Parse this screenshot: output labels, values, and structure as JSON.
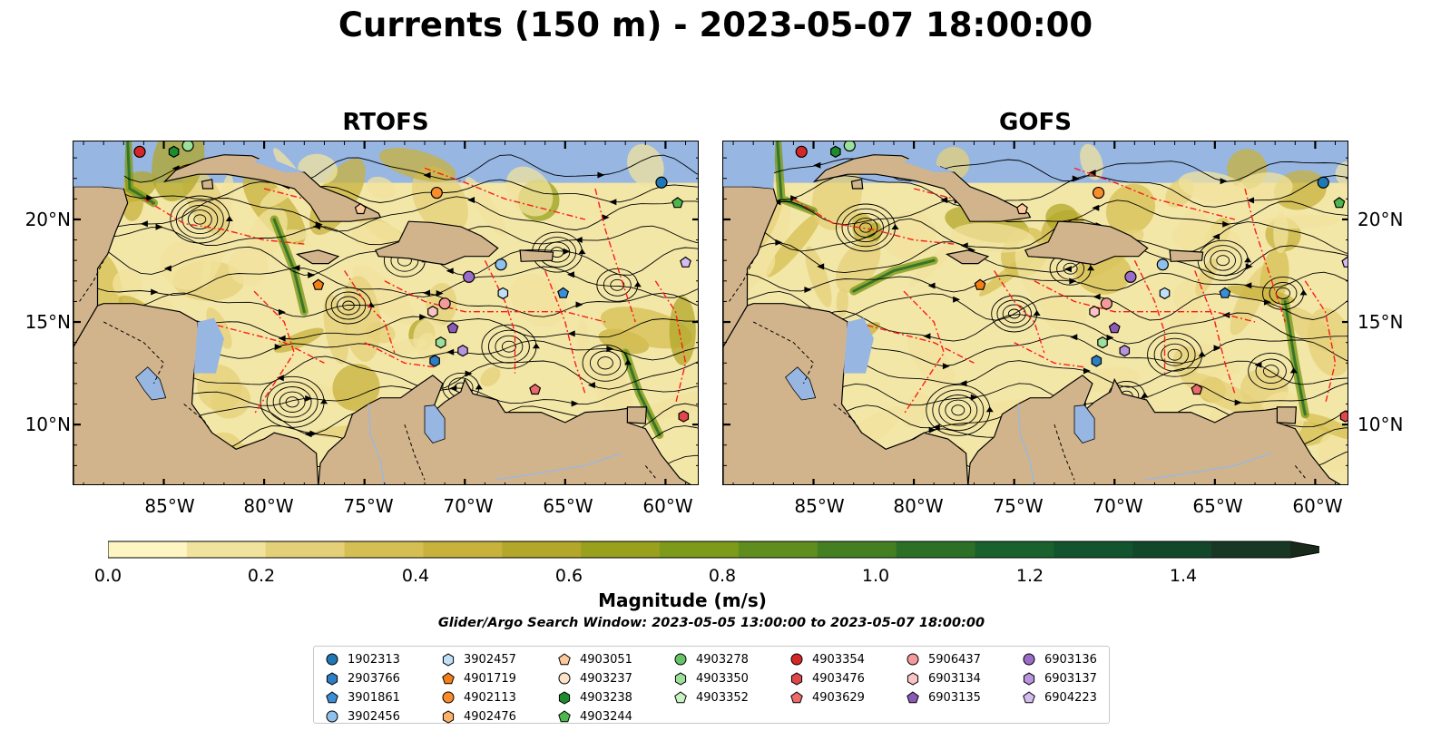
{
  "title": "Currents (150 m) - 2023-05-07 18:00:00",
  "panels": [
    {
      "title": "RTOFS"
    },
    {
      "title": "GOFS"
    }
  ],
  "lon_ticks": [
    "85°W",
    "80°W",
    "75°W",
    "70°W",
    "65°W",
    "60°W"
  ],
  "lat_ticks": [
    "20°N",
    "15°N",
    "10°N"
  ],
  "colorbar": {
    "label": "Magnitude (m/s)",
    "ticks": [
      "0.0",
      "0.2",
      "0.4",
      "0.6",
      "0.8",
      "1.0",
      "1.2",
      "1.4"
    ],
    "min": 0.0,
    "max": 1.5,
    "step": 0.1,
    "extend": "max",
    "colors": [
      "#fdf6c3",
      "#f1e39e",
      "#e5d07a",
      "#d6bf52",
      "#c8b23c",
      "#b2a728",
      "#98a01c",
      "#7d9a1a",
      "#5f8e1f",
      "#447f22",
      "#2c7027",
      "#19622d",
      "#11542d",
      "#13472a",
      "#183724",
      "#1a2a1a"
    ]
  },
  "subtitle": "Glider/Argo Search Window: 2023-05-05 13:00:00 to 2023-05-07 18:00:00",
  "colors": {
    "ocean": "#f3e7a8",
    "land": "#d2b48c",
    "lake": "#97b6e2",
    "eez": "#ff1a1a",
    "stream": "#000000"
  },
  "legend": [
    {
      "id": "1902313",
      "marker": "circle",
      "color": "#1f77b4"
    },
    {
      "id": "2903766",
      "marker": "hexagon",
      "color": "#2c7fc4"
    },
    {
      "id": "3901861",
      "marker": "pentagon",
      "color": "#3b8fd6"
    },
    {
      "id": "3902456",
      "marker": "circle",
      "color": "#8fc1ec"
    },
    {
      "id": "3902457",
      "marker": "hexagon",
      "color": "#bfe0f7"
    },
    {
      "id": "4901719",
      "marker": "pentagon",
      "color": "#f57f17"
    },
    {
      "id": "4902113",
      "marker": "circle",
      "color": "#fb8c2c"
    },
    {
      "id": "4902476",
      "marker": "hexagon",
      "color": "#fdb26a"
    },
    {
      "id": "4903051",
      "marker": "pentagon",
      "color": "#fdc99a"
    },
    {
      "id": "4903237",
      "marker": "circle",
      "color": "#fde2c8"
    },
    {
      "id": "4903238",
      "marker": "hexagon",
      "color": "#1e8c2c"
    },
    {
      "id": "4903244",
      "marker": "pentagon",
      "color": "#4cb84c"
    },
    {
      "id": "4903278",
      "marker": "circle",
      "color": "#66c466"
    },
    {
      "id": "4903350",
      "marker": "hexagon",
      "color": "#9be09b"
    },
    {
      "id": "4903352",
      "marker": "pentagon",
      "color": "#c8f3c3"
    },
    {
      "id": "4903354",
      "marker": "circle",
      "color": "#d62728"
    },
    {
      "id": "4903476",
      "marker": "hexagon",
      "color": "#e0474a"
    },
    {
      "id": "4903629",
      "marker": "pentagon",
      "color": "#eb6a6c"
    },
    {
      "id": "5906437",
      "marker": "circle",
      "color": "#f29b9a"
    },
    {
      "id": "6903134",
      "marker": "hexagon",
      "color": "#fbc4c4"
    },
    {
      "id": "6903135",
      "marker": "pentagon",
      "color": "#8c5ab4"
    },
    {
      "id": "6903136",
      "marker": "circle",
      "color": "#9b6dc8"
    },
    {
      "id": "6903137",
      "marker": "hexagon",
      "color": "#b894dd"
    },
    {
      "id": "6904223",
      "marker": "pentagon",
      "color": "#d6bdf0"
    }
  ],
  "floats": [
    {
      "lon": -86.2,
      "lat": 23.3,
      "color": "#d62728",
      "marker": "circle"
    },
    {
      "lon": -84.5,
      "lat": 23.3,
      "color": "#1e8c2c",
      "marker": "hexagon"
    },
    {
      "lon": -83.8,
      "lat": 23.6,
      "color": "#9be09b",
      "marker": "circle"
    },
    {
      "lon": -71.4,
      "lat": 21.3,
      "color": "#fb8c2c",
      "marker": "circle"
    },
    {
      "lon": -60.2,
      "lat": 21.8,
      "color": "#1f77b4",
      "marker": "circle"
    },
    {
      "lon": -59.4,
      "lat": 20.8,
      "color": "#4cb84c",
      "marker": "pentagon"
    },
    {
      "lon": -75.2,
      "lat": 20.5,
      "color": "#fdc99a",
      "marker": "pentagon"
    },
    {
      "lon": -77.3,
      "lat": 16.8,
      "color": "#f57f17",
      "marker": "pentagon"
    },
    {
      "lon": -69.8,
      "lat": 17.2,
      "color": "#9b6dc8",
      "marker": "circle"
    },
    {
      "lon": -68.2,
      "lat": 17.8,
      "color": "#8fc1ec",
      "marker": "circle"
    },
    {
      "lon": -68.1,
      "lat": 16.4,
      "color": "#bfe0f7",
      "marker": "hexagon"
    },
    {
      "lon": -65.1,
      "lat": 16.4,
      "color": "#3b8fd6",
      "marker": "pentagon"
    },
    {
      "lon": -71.0,
      "lat": 15.9,
      "color": "#f29b9a",
      "marker": "circle"
    },
    {
      "lon": -71.6,
      "lat": 15.5,
      "color": "#fbc4c4",
      "marker": "hexagon"
    },
    {
      "lon": -70.6,
      "lat": 14.7,
      "color": "#8c5ab4",
      "marker": "pentagon"
    },
    {
      "lon": -71.2,
      "lat": 14.0,
      "color": "#9be09b",
      "marker": "hexagon"
    },
    {
      "lon": -70.1,
      "lat": 13.6,
      "color": "#b894dd",
      "marker": "hexagon"
    },
    {
      "lon": -71.5,
      "lat": 13.1,
      "color": "#2c7fc4",
      "marker": "hexagon"
    },
    {
      "lon": -66.5,
      "lat": 11.7,
      "color": "#eb6a6c",
      "marker": "pentagon"
    },
    {
      "lon": -59.0,
      "lat": 17.9,
      "color": "#d6bdf0",
      "marker": "pentagon"
    },
    {
      "lon": -59.1,
      "lat": 10.4,
      "color": "#e0474a",
      "marker": "hexagon"
    }
  ],
  "map_extent": {
    "lon": [
      -89.5,
      -58.3
    ],
    "lat": [
      7.0,
      23.8
    ]
  }
}
